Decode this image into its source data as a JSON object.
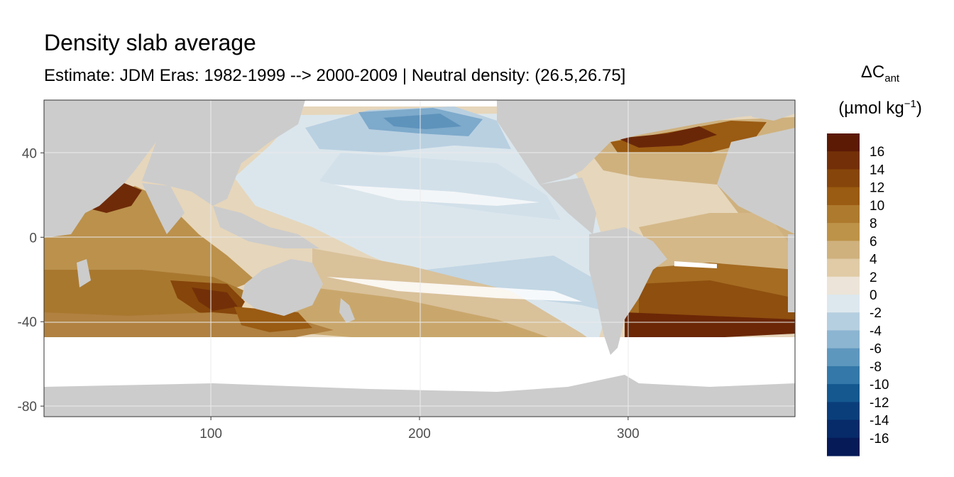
{
  "chart_data": {
    "type": "heatmap",
    "title": "Density slab average",
    "subtitle": "Estimate: JDM Eras: 1982-1999 --> 2000-2009 | Neutral density: (26.5,26.75]",
    "xlabel": "",
    "ylabel": "",
    "x_ticks": [
      100,
      200,
      300
    ],
    "y_ticks": [
      40,
      0,
      -40,
      -80
    ],
    "xlim": [
      20,
      380
    ],
    "ylim": [
      -85,
      65
    ],
    "grid": true,
    "legend": {
      "title_main": "ΔC",
      "title_sub": "ant",
      "unit_prefix": "(µmol kg",
      "unit_sup": "−1",
      "unit_suffix": ")",
      "placement": "right",
      "breaks": [
        16,
        14,
        12,
        10,
        8,
        6,
        4,
        2,
        0,
        -2,
        -4,
        -6,
        -8,
        -10,
        -12,
        -14,
        -16
      ],
      "colors": [
        "#5c1a05",
        "#733008",
        "#86450a",
        "#9a5b12",
        "#ad7a2e",
        "#bd9349",
        "#cfb17e",
        "#e0cba6",
        "#ece4d8",
        "#dde8ee",
        "#b6cfe0",
        "#8cb5d2",
        "#5e97be",
        "#3378a8",
        "#14588f",
        "#0a3e7a",
        "#072a68",
        "#051a57"
      ]
    },
    "map_note_colors": {
      "land": "#cccccc",
      "no_data": "#ffffff"
    }
  }
}
